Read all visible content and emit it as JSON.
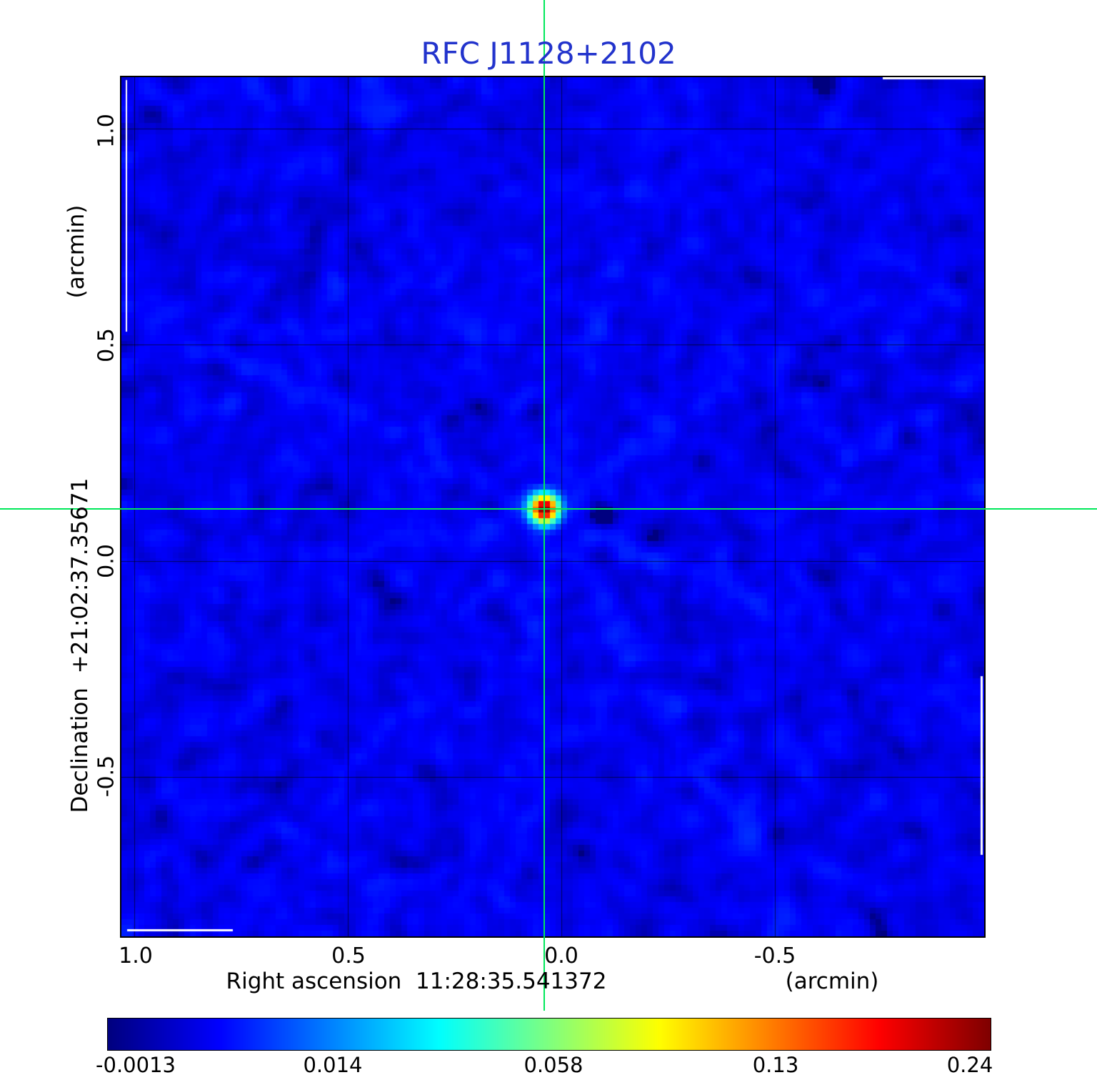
{
  "title": "RFC J1128+2102",
  "title_color": "#2233cc",
  "axes": {
    "x": {
      "label": "Right ascension  11:28:35.541372",
      "unit": "(arcmin)",
      "tick_labels": [
        "1.0",
        "0.5",
        "0.0",
        "-0.5"
      ],
      "ticks": [
        1.0,
        0.5,
        0.0,
        -0.5
      ]
    },
    "y": {
      "label": "Declination  +21:02:37.35671",
      "unit": "(arcmin)",
      "tick_labels": [
        "1.0",
        "0.5",
        "0.0",
        "-0.5"
      ],
      "ticks": [
        1.0,
        0.5,
        0.0,
        -0.5
      ]
    }
  },
  "crosshair": {
    "x_arcmin": 0.04,
    "y_arcmin": 0.12,
    "color": "#00e85a"
  },
  "colorbar": {
    "tick_labels": [
      "-0.0013",
      "0.014",
      "0.058",
      "0.13",
      "0.24"
    ]
  },
  "chart_data": {
    "type": "heatmap",
    "title": "RFC J1128+2102",
    "xlabel": "Right ascension 11:28:35.541372 (arcmin)",
    "ylabel": "Declination +21:02:37.35671 (arcmin)",
    "colormap": "jet",
    "scale": "sqrt",
    "vmin": -0.0013,
    "vmax": 0.24,
    "colorbar_ticks": [
      -0.0013,
      0.014,
      0.058,
      0.13,
      0.24
    ],
    "x_ticks_arcmin": [
      1.0,
      0.5,
      0.0,
      -0.5
    ],
    "y_ticks_arcmin": [
      1.0,
      0.5,
      0.0,
      -0.5
    ],
    "x_range_arcmin": [
      1.03,
      -0.99
    ],
    "y_range_arcmin": [
      1.12,
      -0.87
    ],
    "background_level": 0.0015,
    "peak": {
      "x_arcmin": 0.04,
      "y_arcmin": 0.12,
      "value": 0.24
    }
  }
}
